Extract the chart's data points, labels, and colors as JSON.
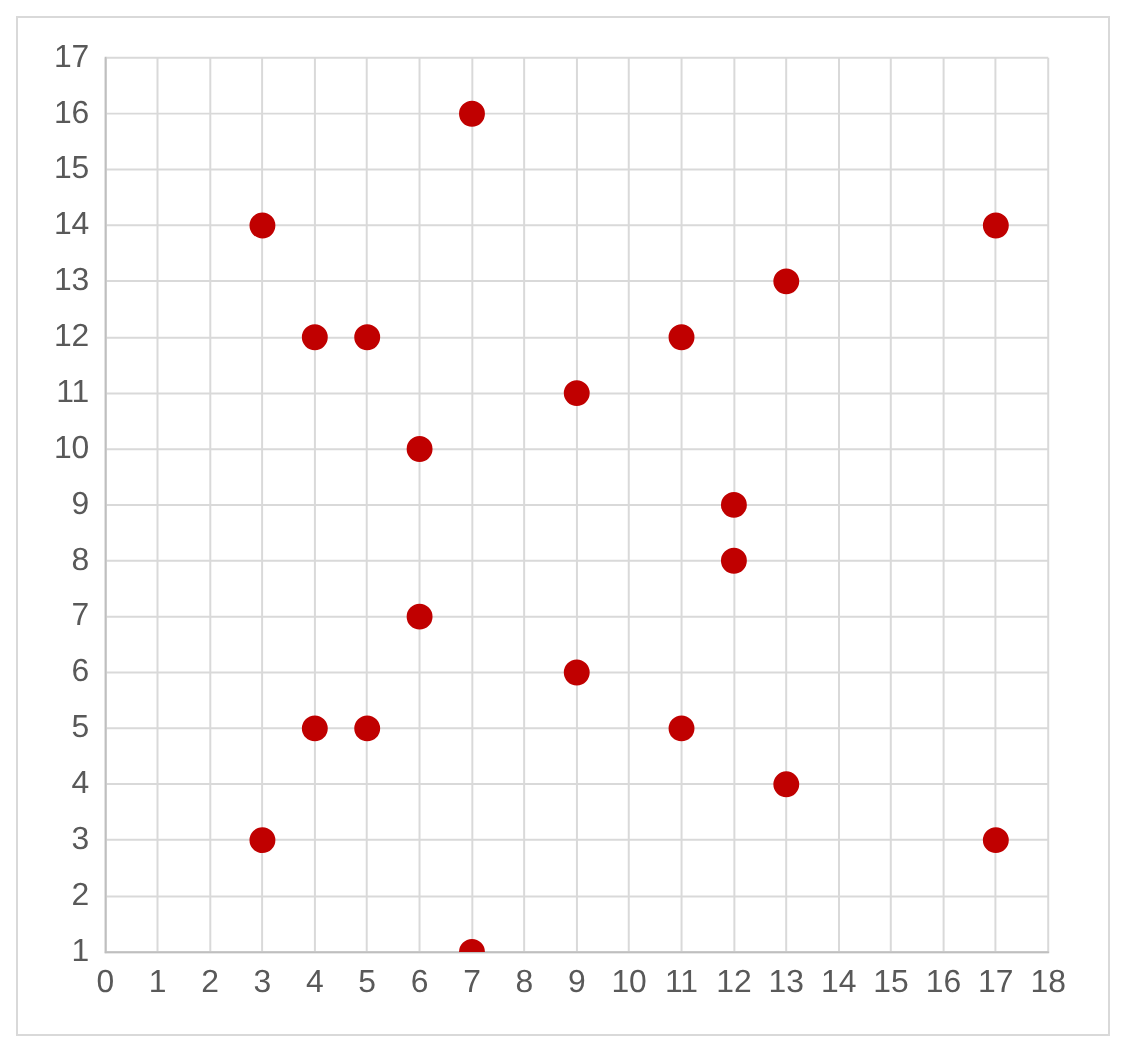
{
  "chart_data": {
    "type": "scatter",
    "color": "#c00000",
    "marker": "circle",
    "grid": true,
    "legend": false,
    "x": [
      7,
      3,
      17,
      13,
      4,
      5,
      11,
      9,
      6,
      12,
      12,
      6,
      9,
      4,
      5,
      11,
      13,
      3,
      17,
      7
    ],
    "values": [
      16,
      14,
      14,
      13,
      12,
      12,
      12,
      11,
      10,
      9,
      8,
      7,
      6,
      5,
      5,
      5,
      4,
      3,
      3,
      1
    ],
    "xlim": [
      0,
      18
    ],
    "ylim": [
      1,
      17
    ],
    "xticks": [
      0,
      1,
      2,
      3,
      4,
      5,
      6,
      7,
      8,
      9,
      10,
      11,
      12,
      13,
      14,
      15,
      16,
      17,
      18
    ],
    "yticks": [
      1,
      2,
      3,
      4,
      5,
      6,
      7,
      8,
      9,
      10,
      11,
      12,
      13,
      14,
      15,
      16,
      17
    ]
  }
}
